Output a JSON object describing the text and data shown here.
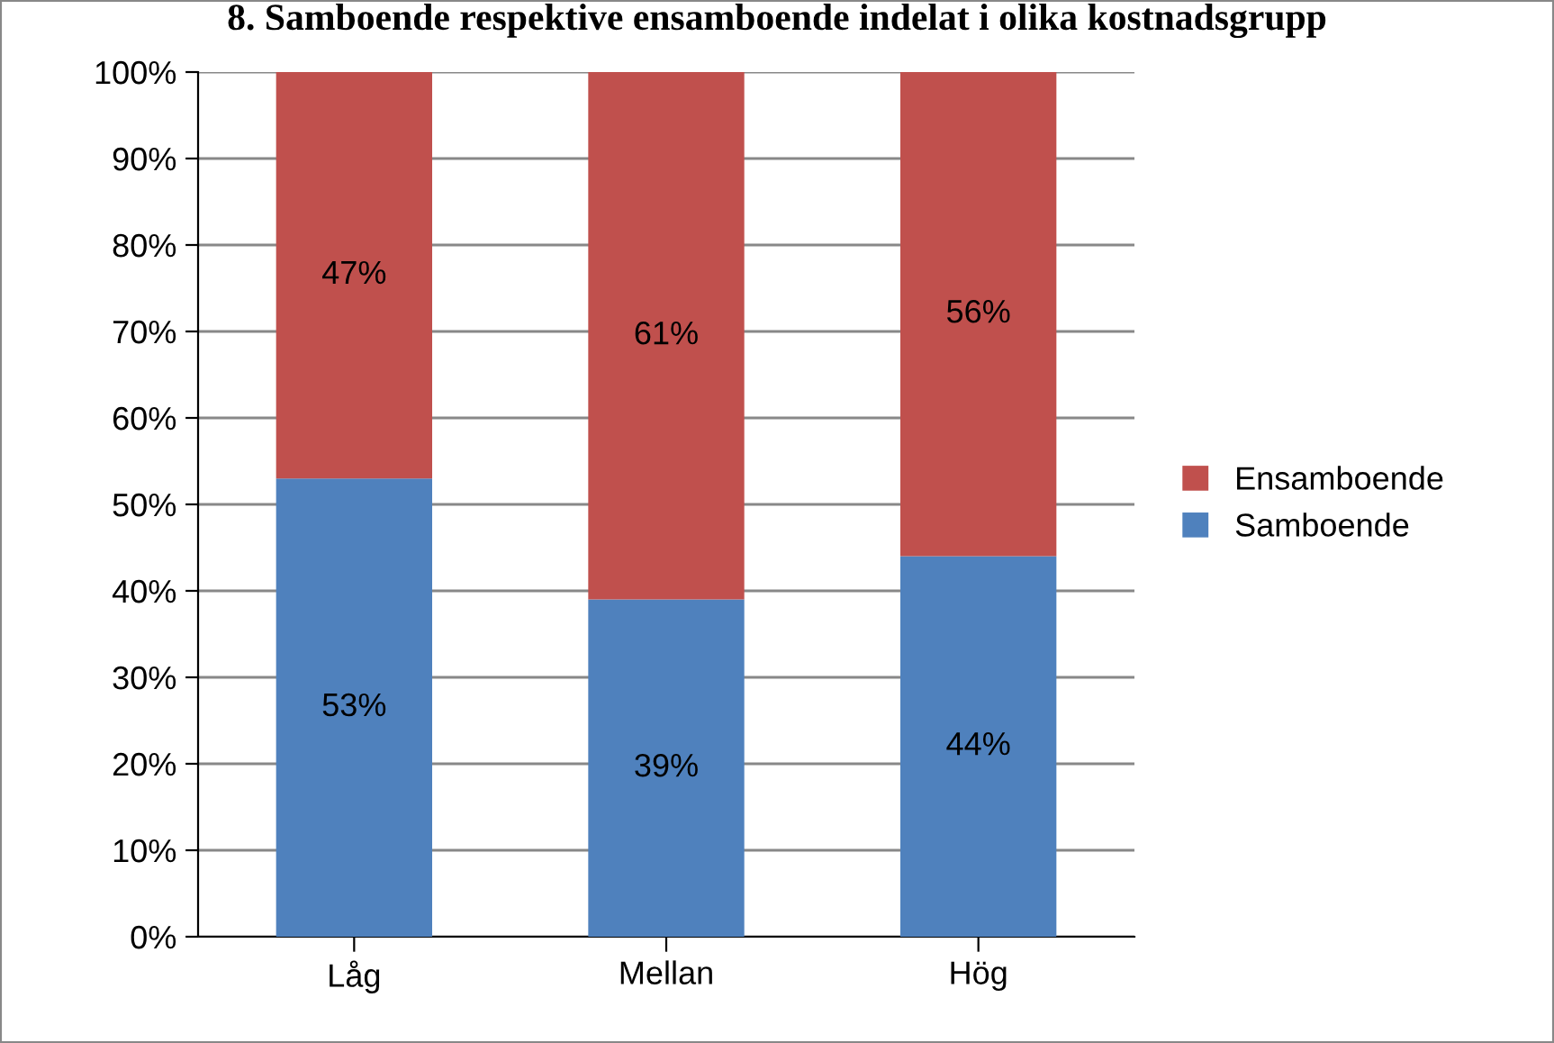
{
  "chart_data": {
    "type": "bar",
    "title": "8. Samboende respektive ensamboende indelat i olika kostnadsgrupp",
    "categories": [
      "Låg",
      "Mellan",
      "Hög"
    ],
    "stacked": true,
    "series": [
      {
        "name": "Samboende",
        "color": "#4f81bd",
        "values": [
          53,
          39,
          44
        ],
        "value_labels": [
          "53%",
          "39%",
          "44%"
        ]
      },
      {
        "name": "Ensamboende",
        "color": "#c0504d",
        "values": [
          47,
          61,
          56
        ],
        "value_labels": [
          "47%",
          "61%",
          "56%"
        ]
      }
    ],
    "ylim": [
      0,
      100
    ],
    "yticks": [
      {
        "value": 0,
        "label": "0%"
      },
      {
        "value": 10,
        "label": "10%"
      },
      {
        "value": 20,
        "label": "20%"
      },
      {
        "value": 30,
        "label": "30%"
      },
      {
        "value": 40,
        "label": "40%"
      },
      {
        "value": 50,
        "label": "50%"
      },
      {
        "value": 60,
        "label": "60%"
      },
      {
        "value": 70,
        "label": "70%"
      },
      {
        "value": 80,
        "label": "80%"
      },
      {
        "value": 90,
        "label": "90%"
      },
      {
        "value": 100,
        "label": "100%"
      }
    ],
    "grid": "y",
    "legend": "right"
  }
}
